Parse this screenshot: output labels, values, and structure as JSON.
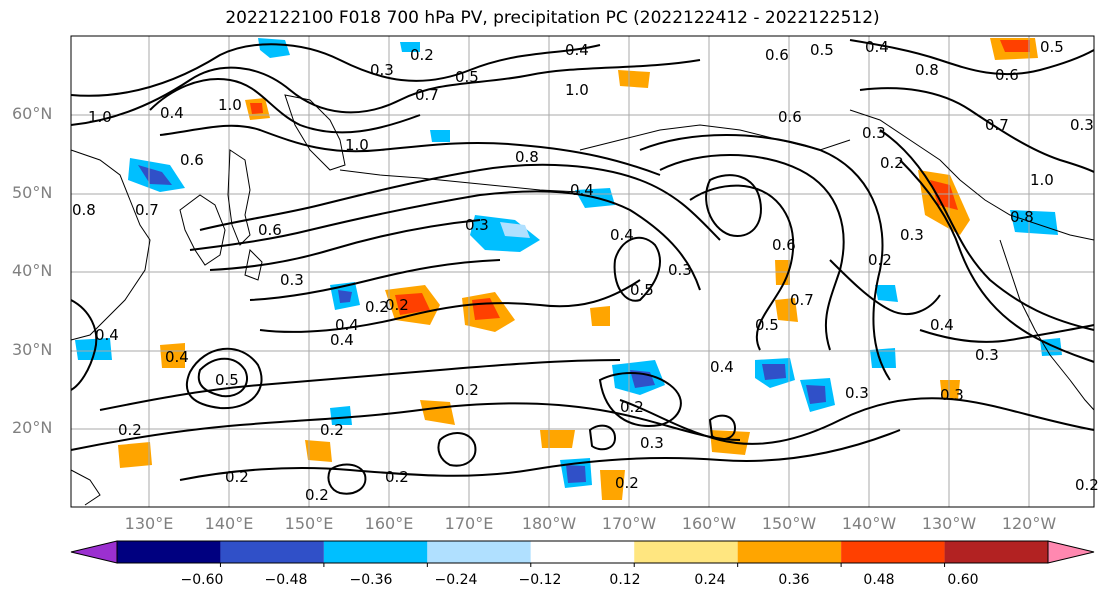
{
  "title": "2022122100 F018 700 hPa PV, precipitation PC (2022122412 - 2022122512)",
  "lat_labels": [
    "60°N",
    "50°N",
    "40°N",
    "30°N",
    "20°N"
  ],
  "lon_labels": [
    "130°E",
    "140°E",
    "150°E",
    "160°E",
    "170°E",
    "180°W",
    "170°W",
    "160°W",
    "150°W",
    "140°W",
    "130°W",
    "120°W"
  ],
  "colorbar": {
    "ticks": [
      "−0.60",
      "−0.48",
      "−0.36",
      "−0.24",
      "−0.12",
      "0.12",
      "0.24",
      "0.36",
      "0.48",
      "0.60"
    ],
    "colors": [
      "#9b30d0",
      "#000080",
      "#3050c8",
      "#00bfff",
      "#b0e0ff",
      "#ffffff",
      "#ffe680",
      "#ffa500",
      "#ff4000",
      "#b22222",
      "#ff88b0"
    ]
  },
  "contour_labels": [
    "0.4",
    "0.5",
    "0.6",
    "0.4",
    "0.2",
    "0.3",
    "0.5",
    "0.7",
    "1.0",
    "0.8",
    "0.6",
    "1.0",
    "1.0",
    "0.4",
    "0.7",
    "0.3",
    "1.0",
    "0.6",
    "0.8",
    "0.5",
    "0.6",
    "0.8",
    "0.3",
    "0.2",
    "1.0",
    "0.7",
    "0.8",
    "0.4",
    "0.3",
    "0.2",
    "0.3",
    "0.4",
    "0.2",
    "0.5",
    "0.6",
    "0.7",
    "0.4",
    "0.5",
    "0.3",
    "0.6",
    "0.4",
    "0.3",
    "0.2",
    "0.2",
    "0.2",
    "0.3",
    "0.2",
    "0.2",
    "0.2",
    "0.4",
    "0.3",
    "0.4",
    "0.2",
    "0.2",
    "0.5",
    "0.4",
    "0.3",
    "0.4",
    "0.3",
    "0.2",
    "0.2"
  ]
}
